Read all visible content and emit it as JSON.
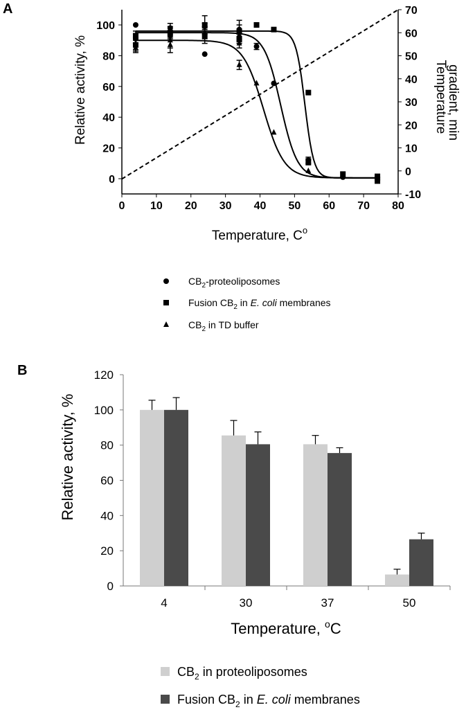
{
  "figure": {
    "panel_a_letter": "A",
    "panel_b_letter": "B"
  },
  "chart_data": [
    {
      "type": "scatter",
      "panel": "A",
      "xlabel": "Temperature, C",
      "xlabel_sup": "o",
      "ylabel": "Relative activity, %",
      "y2label_line1": "Temperature",
      "y2label_line2": "gradient, min",
      "xlim": [
        0,
        80
      ],
      "ylim": [
        -10,
        110
      ],
      "y2lim": [
        -10,
        70
      ],
      "x_ticks": [
        "0",
        "10",
        "20",
        "30",
        "40",
        "50",
        "60",
        "70",
        "80"
      ],
      "y_ticks": [
        "0",
        "20",
        "40",
        "60",
        "80",
        "100"
      ],
      "y2_ticks": [
        "-10",
        "0",
        "10",
        "20",
        "30",
        "40",
        "50",
        "60",
        "70"
      ],
      "grid": false,
      "legend_position": "below",
      "series": [
        {
          "name": "CB2-proteoliposomes",
          "legend_text": [
            "CB",
            "2",
            "-proteoliposomes"
          ],
          "marker": "circle",
          "x": [
            4,
            4,
            14,
            14,
            24,
            24,
            34,
            34,
            39,
            44,
            54,
            64,
            74
          ],
          "y": [
            100,
            91,
            98,
            93,
            81,
            99,
            97,
            92,
            86,
            62,
            12,
            1,
            1
          ],
          "err": [
            0,
            3,
            3,
            3,
            0,
            2,
            3,
            2,
            2,
            0,
            2,
            0,
            0
          ],
          "fit_top": 95,
          "fit_bottom": 0.5,
          "fit_mid": 46,
          "fit_slope": 2.4
        },
        {
          "name": "Fusion CB2 in E. coli membranes",
          "legend_text": [
            "Fusion CB",
            "2",
            " in ",
            "E. coli",
            " membranes"
          ],
          "marker": "square",
          "x": [
            4,
            4,
            14,
            24,
            24,
            34,
            34,
            39,
            44,
            54,
            54,
            64,
            74,
            74
          ],
          "y": [
            93,
            87,
            95,
            100,
            93,
            96,
            91,
            100,
            97,
            56,
            11,
            3,
            1,
            -1
          ],
          "err": [
            3,
            4,
            4,
            6,
            5,
            7,
            3,
            0,
            0,
            0,
            2,
            0,
            2,
            2
          ],
          "fit_top": 96,
          "fit_bottom": 0.5,
          "fit_mid": 53,
          "fit_slope": 1.3
        },
        {
          "name": "CB2 in TD buffer",
          "legend_text": [
            "CB",
            "2",
            " in TD buffer"
          ],
          "marker": "triangle",
          "x": [
            4,
            4,
            14,
            14,
            24,
            34,
            34,
            39,
            44,
            54
          ],
          "y": [
            88,
            85,
            90,
            87,
            95,
            74,
            88,
            62,
            30,
            5
          ],
          "err": [
            4,
            3,
            5,
            5,
            4,
            3,
            3,
            0,
            0,
            0
          ],
          "fit_top": 90,
          "fit_bottom": 0.5,
          "fit_mid": 41,
          "fit_slope": 3.0
        },
        {
          "name": "Temperature gradient",
          "line": "dashed",
          "y_axis": "right",
          "x": [
            0,
            80
          ],
          "y": [
            -3.5,
            70
          ]
        }
      ]
    },
    {
      "type": "bar",
      "panel": "B",
      "xlabel": "Temperature, ",
      "xlabel_sup": "o",
      "xlabel_tail": "C",
      "ylabel": "Relative activity, %",
      "ylim": [
        0,
        120
      ],
      "y_ticks": [
        "0",
        "20",
        "40",
        "60",
        "80",
        "100",
        "120"
      ],
      "categories": [
        "4",
        "30",
        "37",
        "50"
      ],
      "grid": false,
      "legend_position": "below",
      "series": [
        {
          "name": "CB2 in proteoliposomes",
          "legend_text": [
            "CB",
            "2",
            " in proteoliposomes"
          ],
          "color": "#cfcfcf",
          "values": [
            100,
            85.5,
            80.5,
            6.5
          ],
          "err": [
            5.5,
            8.5,
            5,
            3
          ]
        },
        {
          "name": "Fusion CB2 in E. coli membranes",
          "legend_text": [
            "Fusion CB",
            "2",
            " in ",
            "E. coli",
            " membranes"
          ],
          "color": "#4a4a4a",
          "values": [
            100,
            80.5,
            75.5,
            26.5
          ],
          "err": [
            7,
            7,
            3,
            3.5
          ]
        }
      ]
    }
  ]
}
